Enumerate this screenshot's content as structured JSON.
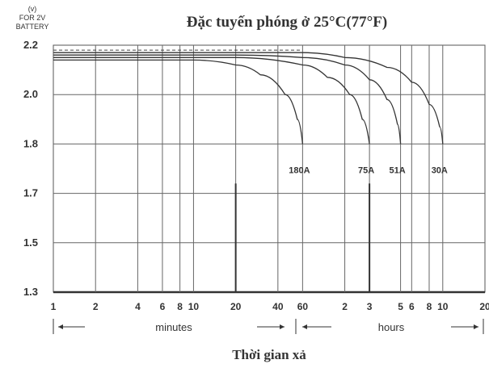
{
  "chart_data": {
    "type": "line",
    "title": "Đặc tuyến phóng ở 25°C(77°F)",
    "xlabel": "Thời gian xả",
    "ylabel_lines": [
      "(v)",
      "FOR 2V",
      "BATTERY"
    ],
    "y_ticks": [
      "2.2",
      "2.0",
      "1.8",
      "1.7",
      "1.5",
      "1.3"
    ],
    "x_ticks_minutes": [
      "1",
      "2",
      "4",
      "6",
      "8",
      "10",
      "20",
      "40",
      "60"
    ],
    "x_ticks_hours": [
      "2",
      "3",
      "5",
      "6",
      "8",
      "10",
      "20"
    ],
    "range_labels": {
      "minutes": "minutes",
      "hours": "hours"
    },
    "grid": true,
    "series": [
      {
        "name": "180A",
        "points": [
          [
            1,
            2.14
          ],
          [
            10,
            2.14
          ],
          [
            20,
            2.12
          ],
          [
            30,
            2.08
          ],
          [
            45,
            2.0
          ],
          [
            55,
            1.9
          ],
          [
            60,
            1.8
          ]
        ]
      },
      {
        "name": "75A",
        "points": [
          [
            1,
            2.15
          ],
          [
            10,
            2.15
          ],
          [
            20,
            2.15
          ],
          [
            60,
            2.12
          ],
          [
            90,
            2.07
          ],
          [
            130,
            2.0
          ],
          [
            160,
            1.9
          ],
          [
            180,
            1.8
          ]
        ]
      },
      {
        "name": "51A",
        "points": [
          [
            1,
            2.16
          ],
          [
            20,
            2.16
          ],
          [
            60,
            2.15
          ],
          [
            120,
            2.12
          ],
          [
            180,
            2.06
          ],
          [
            240,
            1.98
          ],
          [
            285,
            1.88
          ],
          [
            300,
            1.8
          ]
        ]
      },
      {
        "name": "30A",
        "points": [
          [
            1,
            2.17
          ],
          [
            60,
            2.17
          ],
          [
            120,
            2.15
          ],
          [
            240,
            2.11
          ],
          [
            360,
            2.05
          ],
          [
            480,
            1.96
          ],
          [
            570,
            1.87
          ],
          [
            600,
            1.8
          ]
        ]
      }
    ],
    "reference_line": {
      "value": 2.18,
      "style": "dashed"
    }
  }
}
